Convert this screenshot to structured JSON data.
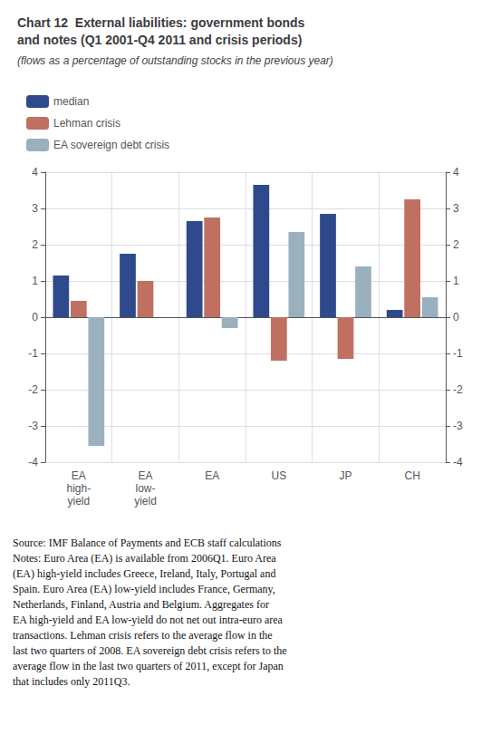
{
  "chart_data": {
    "type": "bar",
    "title": "Chart 12  External liabilities: government bonds\nand notes (Q1 2001-Q4 2011 and crisis periods)",
    "subtitle": "(flows as a percentage of outstanding stocks in the previous year)",
    "categories": [
      "EA\nhigh-\nyield",
      "EA\nlow-\nyield",
      "EA",
      "US",
      "JP",
      "CH"
    ],
    "series": [
      {
        "name": "median",
        "color": "#2e4a8c",
        "values": [
          1.15,
          1.75,
          2.65,
          3.65,
          2.85,
          0.2
        ]
      },
      {
        "name": "Lehman crisis",
        "color": "#c07060",
        "values": [
          0.45,
          1.0,
          2.75,
          -1.2,
          -1.15,
          3.25
        ]
      },
      {
        "name": "EA sovereign debt crisis",
        "color": "#9ab0be",
        "values": [
          -3.55,
          null,
          -0.3,
          2.35,
          1.4,
          0.55
        ]
      }
    ],
    "ylim": [
      -4,
      4
    ],
    "yticks": [
      -4,
      -3,
      -2,
      -1,
      0,
      1,
      2,
      3,
      4
    ],
    "y2lim": [
      -4,
      4
    ],
    "y2ticks": [
      -4,
      -3,
      -2,
      -1,
      0,
      1,
      2,
      3,
      4
    ],
    "grid": true,
    "legend": "top",
    "annotations": [
      "Source: IMF Balance of Payments and ECB staff calculations\nNotes: Euro Area (EA) is available from 2006Q1. Euro Area\n(EA) high-yield includes Greece, Ireland, Italy, Portugal and\nSpain. Euro Area (EA) low-yield includes France, Germany,\nNetherlands, Finland, Austria and Belgium. Aggregates for\nEA high-yield and EA low-yield do not net out intra-euro area\ntransactions. Lehman crisis refers to the average flow in the\nlast two quarters of 2008. EA sovereign debt crisis refers to the\naverage flow in the last two quarters of 2011, except for Japan\nthat includes only 2011Q3."
    ]
  }
}
